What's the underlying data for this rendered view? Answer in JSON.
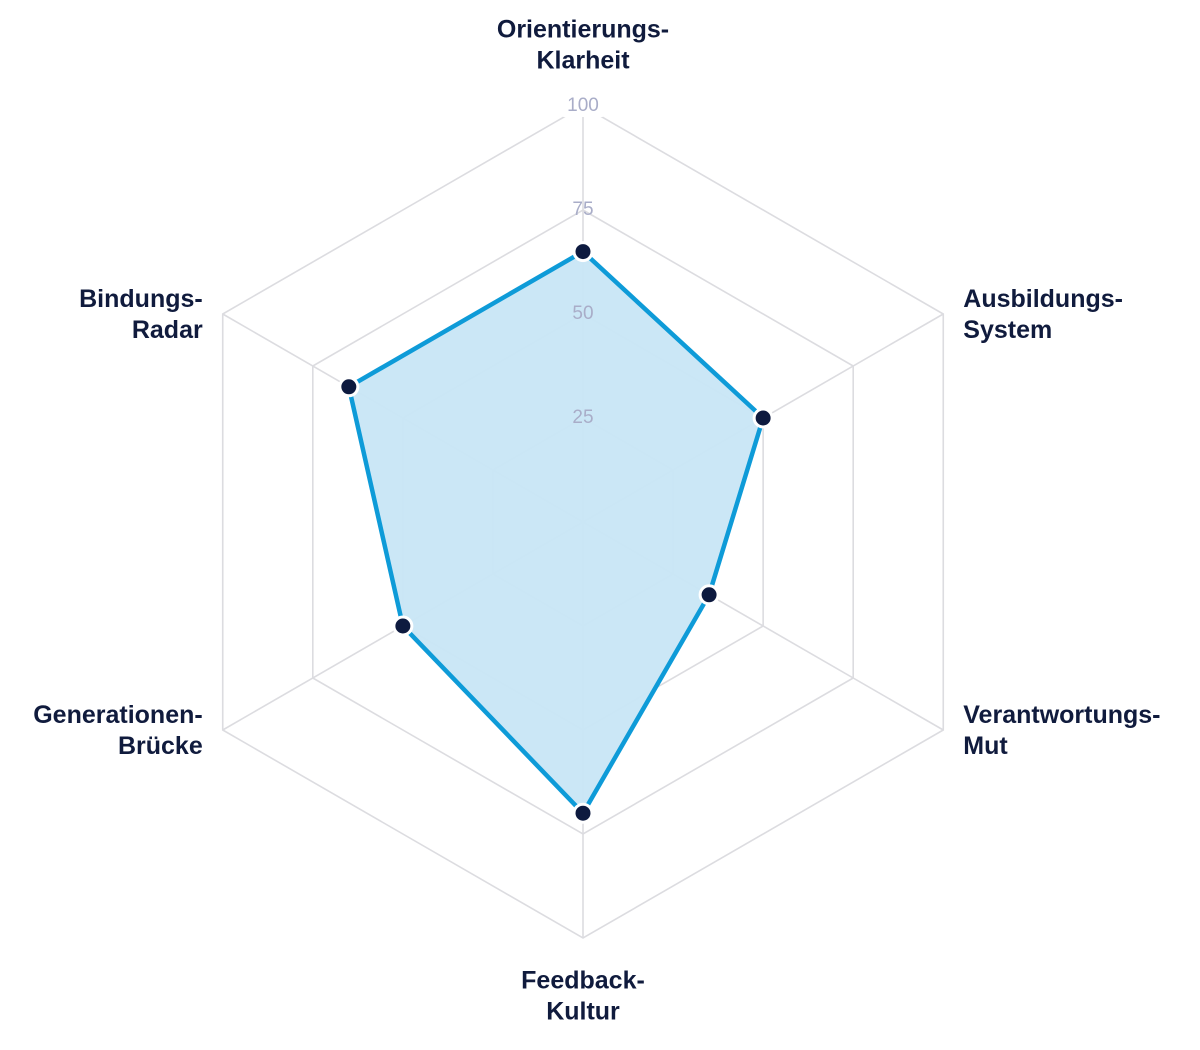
{
  "chart_data": {
    "type": "radar",
    "title": "",
    "axes": [
      {
        "label_lines": [
          "Orientierungs-",
          "Klarheit"
        ]
      },
      {
        "label_lines": [
          "Ausbildungs-",
          "System"
        ]
      },
      {
        "label_lines": [
          "Verantwortungs-",
          "Mut"
        ]
      },
      {
        "label_lines": [
          "Feedback-",
          "Kultur"
        ]
      },
      {
        "label_lines": [
          "Generationen-",
          "Brücke"
        ]
      },
      {
        "label_lines": [
          "Bindungs-",
          "Radar"
        ]
      }
    ],
    "range": [
      0,
      100
    ],
    "ticks": [
      "25",
      "50",
      "75",
      "100"
    ],
    "series": [
      {
        "values": [
          65,
          50,
          35,
          70,
          50,
          65
        ]
      }
    ],
    "grid": true,
    "legend": "none"
  },
  "colors": {
    "grid": "#dcdce0",
    "tick_label": "#a9adc8",
    "axis_label": "#101b3d",
    "series_line": "#0e9bd8",
    "series_fill": "#c8e6f6",
    "point_fill": "#0d1a3f",
    "point_stroke": "#ffffff"
  }
}
